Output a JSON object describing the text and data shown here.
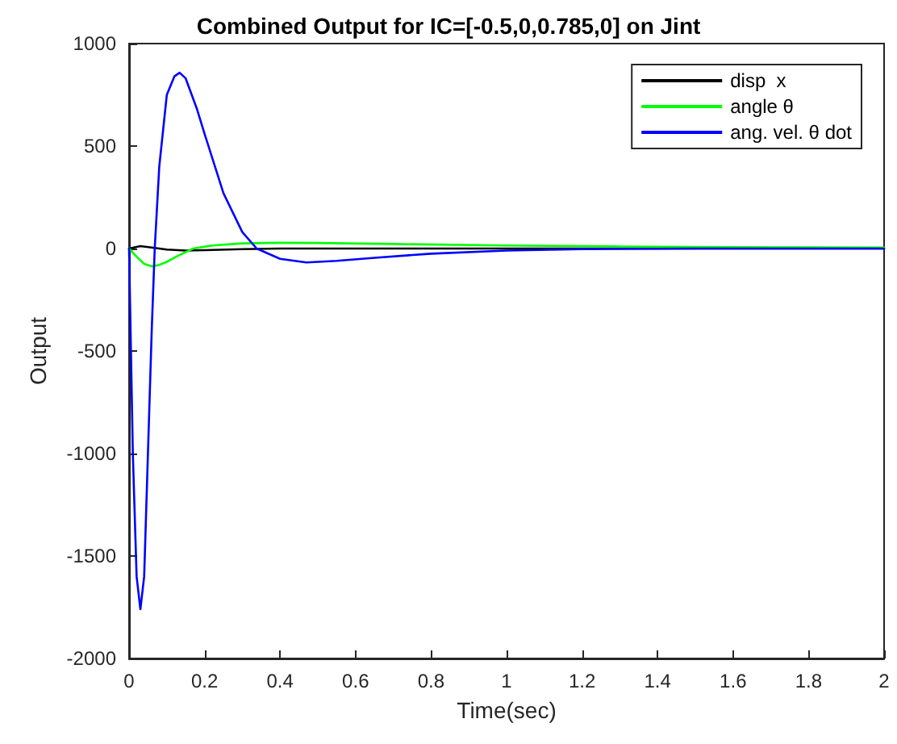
{
  "chart_data": {
    "type": "line",
    "title": "Combined Output for IC=[-0.5,0,0.785,0] on Jint",
    "xlabel": "Time(sec)",
    "ylabel": "Output",
    "xlim": [
      0,
      2
    ],
    "xticks": [
      0,
      0.2,
      0.4,
      0.6,
      0.8,
      1,
      1.2,
      1.4,
      1.6,
      1.8,
      2
    ],
    "ylim": [
      -2000,
      1000
    ],
    "yticks": [
      -2000,
      -1500,
      -1000,
      -500,
      0,
      500,
      1000
    ],
    "grid": false,
    "legend": "top right",
    "marker": "none",
    "line_style": "solid",
    "series": [
      {
        "name": "disp  x",
        "color": "#000000",
        "x": [
          0,
          0.03,
          0.06,
          0.1,
          0.15,
          0.2,
          0.3,
          0.4,
          2.0
        ],
        "values": [
          0,
          12,
          5,
          -5,
          -10,
          -8,
          -3,
          0,
          0
        ]
      },
      {
        "name": "angle θ",
        "color": "#00ff00",
        "x": [
          0,
          0.02,
          0.04,
          0.06,
          0.08,
          0.1,
          0.13,
          0.17,
          0.22,
          0.3,
          0.4,
          0.5,
          0.7,
          1.0,
          1.3,
          1.6,
          2.0
        ],
        "values": [
          0,
          -40,
          -75,
          -87,
          -80,
          -65,
          -35,
          0,
          15,
          25,
          28,
          27,
          22,
          15,
          10,
          7,
          5
        ]
      },
      {
        "name": "ang. vel. θ dot",
        "color": "#0000ff",
        "x": [
          0,
          0.005,
          0.01,
          0.02,
          0.03,
          0.04,
          0.05,
          0.06,
          0.068,
          0.08,
          0.1,
          0.12,
          0.134,
          0.15,
          0.18,
          0.2,
          0.25,
          0.3,
          0.338,
          0.4,
          0.47,
          0.55,
          0.65,
          0.8,
          1.0,
          1.2,
          1.5,
          2.0
        ],
        "values": [
          0,
          -500,
          -1000,
          -1600,
          -1760,
          -1600,
          -1000,
          -400,
          0,
          400,
          750,
          840,
          858,
          830,
          680,
          560,
          270,
          80,
          0,
          -50,
          -68,
          -60,
          -45,
          -25,
          -10,
          -3,
          0,
          0
        ]
      }
    ]
  }
}
